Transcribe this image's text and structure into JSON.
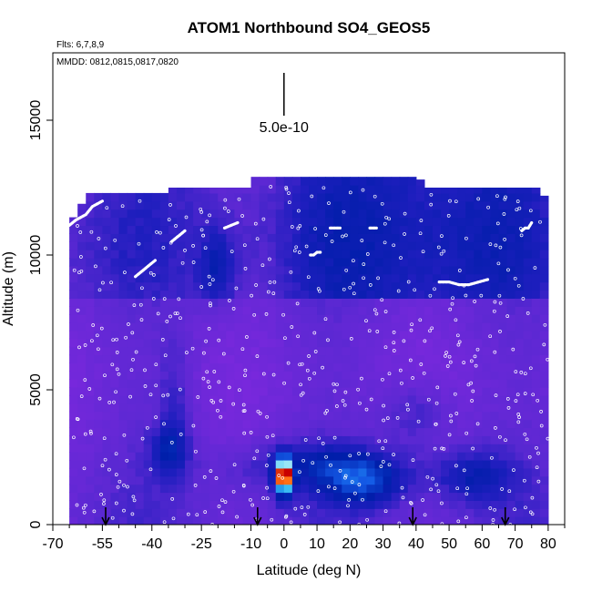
{
  "chart_data": {
    "type": "heatmap",
    "title": "ATOM1 Northbound SO4_GEOS5",
    "flights_note": "Flts: 6,7,8,9",
    "dates_note": "MMDD: 0812,0815,0817,0820",
    "xlabel": "Latitude (deg N)",
    "ylabel": "Altitude (m)",
    "xlim": [
      -70,
      85
    ],
    "ylim": [
      0,
      17500
    ],
    "x_ticks": [
      -70,
      -55,
      -40,
      -25,
      -10,
      0,
      10,
      20,
      30,
      40,
      50,
      60,
      70,
      80
    ],
    "x_tick_labels": [
      "-70",
      "-55",
      "-40",
      "-25",
      "-10",
      "0",
      "10",
      "20",
      "30",
      "40",
      "50",
      "60",
      "70",
      "80"
    ],
    "y_ticks": [
      0,
      5000,
      10000,
      15000
    ],
    "y_tick_labels": [
      "0",
      "5000",
      "10000",
      "15000"
    ],
    "scale_bar_label": "5.0e-10",
    "scale_bar_x": 0,
    "column_tops": [
      {
        "x0": -65,
        "x1": -63,
        "top": 11400
      },
      {
        "x0": -63,
        "x1": -59,
        "top": 11900
      },
      {
        "x0": -59,
        "x1": -46,
        "top": 12300
      },
      {
        "x0": -46,
        "x1": -35,
        "top": 12300
      },
      {
        "x0": -35,
        "x1": -11,
        "top": 12500
      },
      {
        "x0": -11,
        "x1": 40,
        "top": 12900
      },
      {
        "x0": 40,
        "x1": 43,
        "top": 12800
      },
      {
        "x0": 43,
        "x1": 77,
        "top": 12500
      },
      {
        "x0": 77,
        "x1": 79,
        "top": 12200
      },
      {
        "x0": 79,
        "x1": 80,
        "top": 10000
      },
      {
        "x0": 80,
        "x1": 81,
        "top": 8000
      }
    ],
    "hotspot": {
      "x": 0,
      "y": 1800
    },
    "arrow_latitudes": [
      -54,
      -8,
      39,
      67
    ],
    "flight_tracks": [
      {
        "x": [
          -65,
          -63,
          -60,
          -58,
          -55
        ],
        "y": [
          11100,
          11300,
          11500,
          11800,
          12000
        ]
      },
      {
        "x": [
          -45,
          -43,
          -41,
          -39
        ],
        "y": [
          9200,
          9400,
          9600,
          9800
        ]
      },
      {
        "x": [
          -34,
          -32,
          -30
        ],
        "y": [
          10500,
          10700,
          10900
        ]
      },
      {
        "x": [
          -18,
          -16,
          -14
        ],
        "y": [
          11000,
          11100,
          11200
        ]
      },
      {
        "x": [
          8,
          9,
          10,
          11
        ],
        "y": [
          10000,
          10000,
          10100,
          10100
        ]
      },
      {
        "x": [
          14,
          15,
          16,
          17
        ],
        "y": [
          11000,
          11000,
          11000,
          11000
        ]
      },
      {
        "x": [
          26,
          27,
          28
        ],
        "y": [
          11000,
          11000,
          11000
        ]
      },
      {
        "x": [
          47,
          50,
          53,
          56,
          59,
          62
        ],
        "y": [
          9000,
          9000,
          8900,
          8900,
          9000,
          9100
        ]
      },
      {
        "x": [
          72,
          73,
          74,
          75
        ],
        "y": [
          10900,
          11000,
          11000,
          11200
        ]
      }
    ]
  }
}
